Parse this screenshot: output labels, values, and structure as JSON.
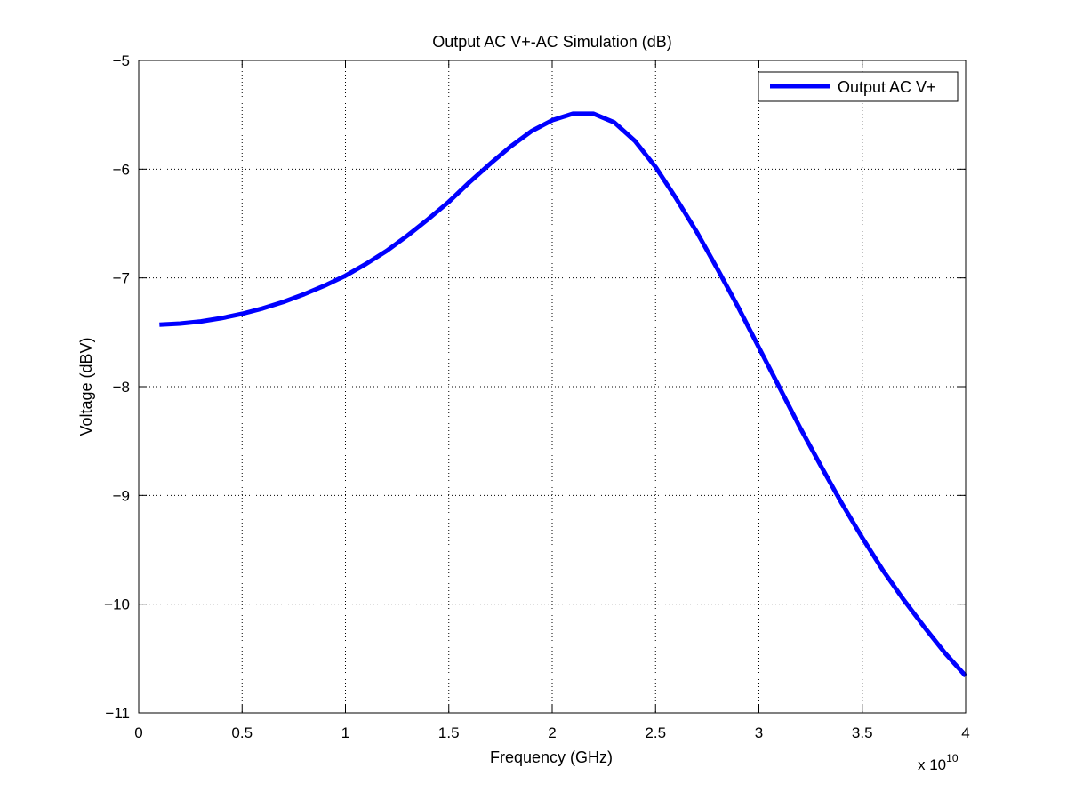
{
  "chart_data": {
    "type": "line",
    "title": "Output AC V+-AC Simulation (dB)",
    "xlabel": "Frequency (GHz)",
    "ylabel": "Voltage (dBV)",
    "x_exponent_base": "x 10",
    "x_exponent_power": "10",
    "xlim": [
      0,
      4
    ],
    "ylim": [
      -11,
      -5
    ],
    "x_ticks": [
      0,
      0.5,
      1,
      1.5,
      2,
      2.5,
      3,
      3.5,
      4
    ],
    "x_tick_labels": [
      "0",
      "0.5",
      "1",
      "1.5",
      "2",
      "2.5",
      "3",
      "3.5",
      "4"
    ],
    "y_ticks": [
      -11,
      -10,
      -9,
      -8,
      -7,
      -6,
      -5
    ],
    "y_tick_labels": [
      "−11",
      "−10",
      "−9",
      "−8",
      "−7",
      "−6",
      "−5"
    ],
    "grid": true,
    "legend_position": "top-right",
    "series": [
      {
        "name": "Output AC V+",
        "color": "#0000ff",
        "x": [
          0.1,
          0.2,
          0.3,
          0.4,
          0.5,
          0.6,
          0.7,
          0.8,
          0.9,
          1.0,
          1.1,
          1.2,
          1.3,
          1.4,
          1.5,
          1.6,
          1.7,
          1.8,
          1.9,
          2.0,
          2.1,
          2.2,
          2.3,
          2.4,
          2.5,
          2.6,
          2.7,
          2.8,
          2.9,
          3.0,
          3.1,
          3.2,
          3.3,
          3.4,
          3.5,
          3.6,
          3.7,
          3.8,
          3.9,
          4.0
        ],
        "values": [
          -7.43,
          -7.42,
          -7.4,
          -7.37,
          -7.33,
          -7.28,
          -7.22,
          -7.15,
          -7.07,
          -6.98,
          -6.87,
          -6.75,
          -6.61,
          -6.46,
          -6.3,
          -6.12,
          -5.95,
          -5.79,
          -5.65,
          -5.55,
          -5.49,
          -5.49,
          -5.57,
          -5.74,
          -5.98,
          -6.27,
          -6.58,
          -6.92,
          -7.27,
          -7.64,
          -8.01,
          -8.38,
          -8.73,
          -9.07,
          -9.39,
          -9.69,
          -9.96,
          -10.21,
          -10.45,
          -10.66
        ]
      }
    ]
  }
}
